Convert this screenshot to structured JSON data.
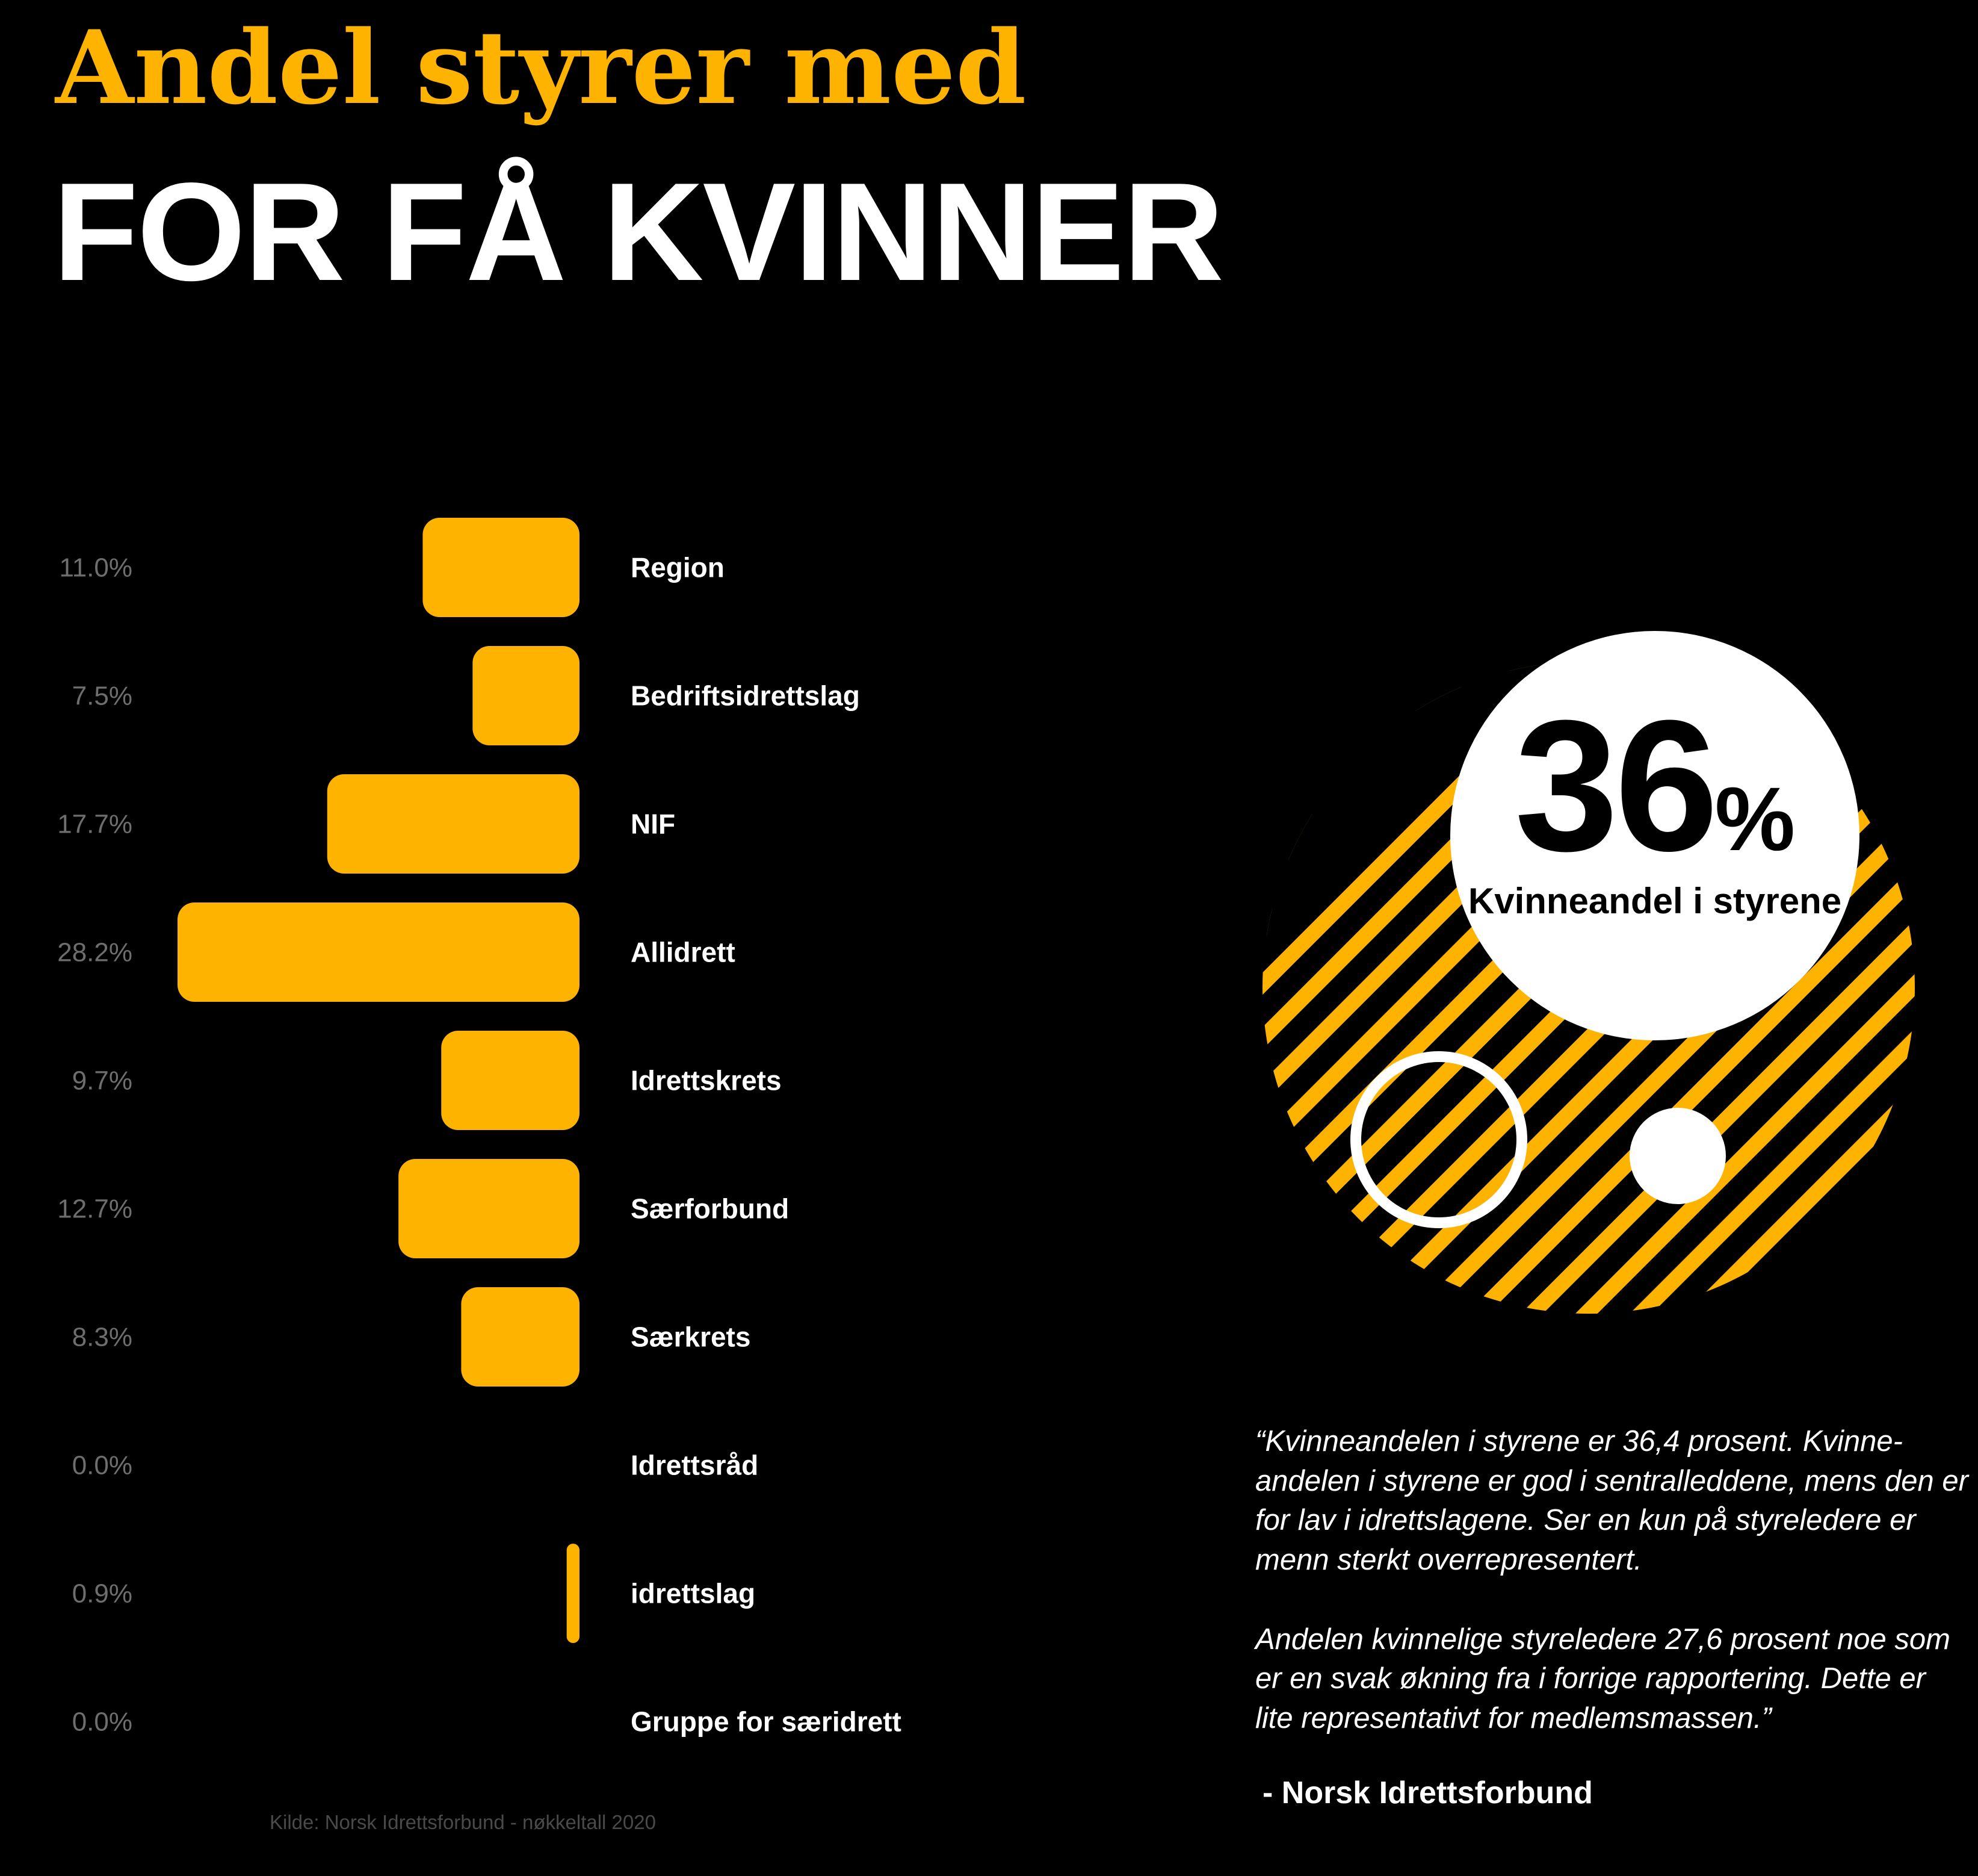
{
  "header": {
    "title_line1": "Andel styrer med",
    "title_line2": "FOR FÅ KVINNER"
  },
  "colors": {
    "accent": "#FDB300",
    "text": "#FFFFFF",
    "background": "#000000",
    "muted": "#6E6E6E"
  },
  "chart_data": {
    "type": "bar",
    "orientation": "horizontal",
    "categories": [
      "Region",
      "Bedriftsidrettslag",
      "NIF",
      "Allidrett",
      "Idrettskrets",
      "Særforbund",
      "Særkrets",
      "Idrettsråd",
      "idrettslag",
      "Gruppe for særidrett"
    ],
    "values": [
      11.0,
      7.5,
      17.7,
      28.2,
      9.7,
      12.7,
      8.3,
      0.0,
      0.9,
      0.0
    ],
    "value_labels": [
      "11.0%",
      "7.5%",
      "17.7%",
      "28.2%",
      "9.7%",
      "12.7%",
      "8.3%",
      "0.0%",
      "0.9%",
      "0.0%"
    ],
    "xlim": [
      0,
      28.2
    ],
    "grid": false,
    "bar_direction": "extends-left"
  },
  "source": "Kilde: Norsk Idrettsforbund - nøkkeltall 2020",
  "highlight": {
    "value": "36",
    "unit": "%",
    "label": "Kvinneandel i styrene"
  },
  "quote": {
    "paragraph1": "“Kvinneandelen i styrene er 36,4 prosent. Kvinne-andelen i styrene er god i sentralleddene, mens den er for lav i idrettslagene. Ser en kun på styreledere er menn sterkt overrepresentert.",
    "paragraph2": "Andelen kvinnelige styreledere 27,6 prosent noe som er en svak økning fra i forrige rapportering. Dette er lite representativt for medlemsmassen.”",
    "attribution": "- Norsk Idrettsforbund"
  }
}
